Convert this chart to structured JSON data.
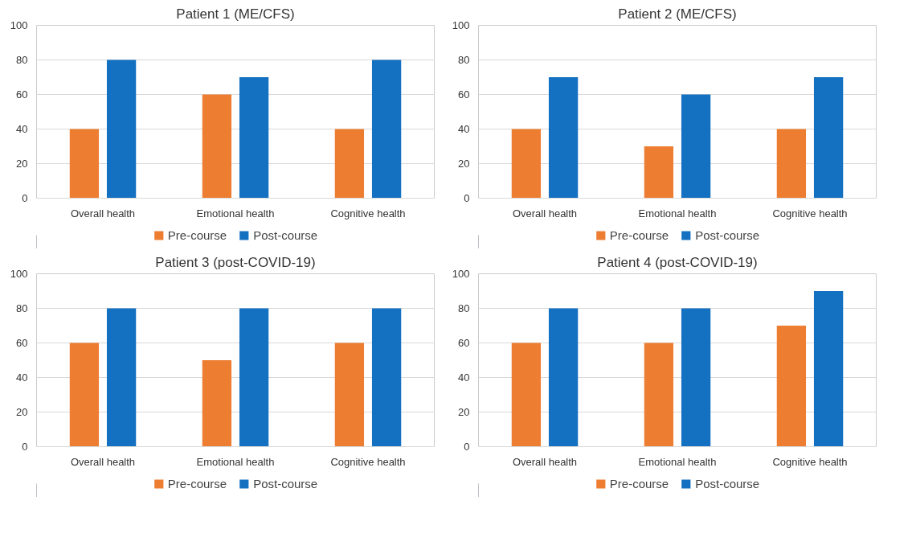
{
  "chart_data": [
    {
      "type": "bar",
      "title": "Patient 1 (ME/CFS)",
      "categories": [
        "Overall health",
        "Emotional health",
        "Cognitive health"
      ],
      "series": [
        {
          "name": "Pre-course",
          "color": "#ed7d31",
          "values": [
            40,
            60,
            40
          ]
        },
        {
          "name": "Post-course",
          "color": "#1470c0",
          "values": [
            80,
            70,
            80
          ]
        }
      ],
      "ylim": [
        0,
        100
      ],
      "yticks": [
        0,
        20,
        40,
        60,
        80,
        100
      ],
      "grid": "y",
      "legend": "bottom"
    },
    {
      "type": "bar",
      "title": "Patient 2 (ME/CFS)",
      "categories": [
        "Overall health",
        "Emotional health",
        "Cognitive health"
      ],
      "series": [
        {
          "name": "Pre-course",
          "color": "#ed7d31",
          "values": [
            40,
            30,
            40
          ]
        },
        {
          "name": "Post-course",
          "color": "#1470c0",
          "values": [
            70,
            60,
            70
          ]
        }
      ],
      "ylim": [
        0,
        100
      ],
      "yticks": [
        0,
        20,
        40,
        60,
        80,
        100
      ],
      "grid": "y",
      "legend": "bottom"
    },
    {
      "type": "bar",
      "title": "Patient 3 (post-COVID-19)",
      "categories": [
        "Overall health",
        "Emotional health",
        "Cognitive health"
      ],
      "series": [
        {
          "name": "Pre-course",
          "color": "#ed7d31",
          "values": [
            60,
            50,
            60
          ]
        },
        {
          "name": "Post-course",
          "color": "#1470c0",
          "values": [
            80,
            80,
            80
          ]
        }
      ],
      "ylim": [
        0,
        100
      ],
      "yticks": [
        0,
        20,
        40,
        60,
        80,
        100
      ],
      "grid": "y",
      "legend": "bottom"
    },
    {
      "type": "bar",
      "title": "Patient 4 (post-COVID-19)",
      "categories": [
        "Overall health",
        "Emotional health",
        "Cognitive health"
      ],
      "series": [
        {
          "name": "Pre-course",
          "color": "#ed7d31",
          "values": [
            60,
            60,
            70
          ]
        },
        {
          "name": "Post-course",
          "color": "#1470c0",
          "values": [
            80,
            80,
            90
          ]
        }
      ],
      "ylim": [
        0,
        100
      ],
      "yticks": [
        0,
        20,
        40,
        60,
        80,
        100
      ],
      "grid": "y",
      "legend": "bottom"
    }
  ]
}
